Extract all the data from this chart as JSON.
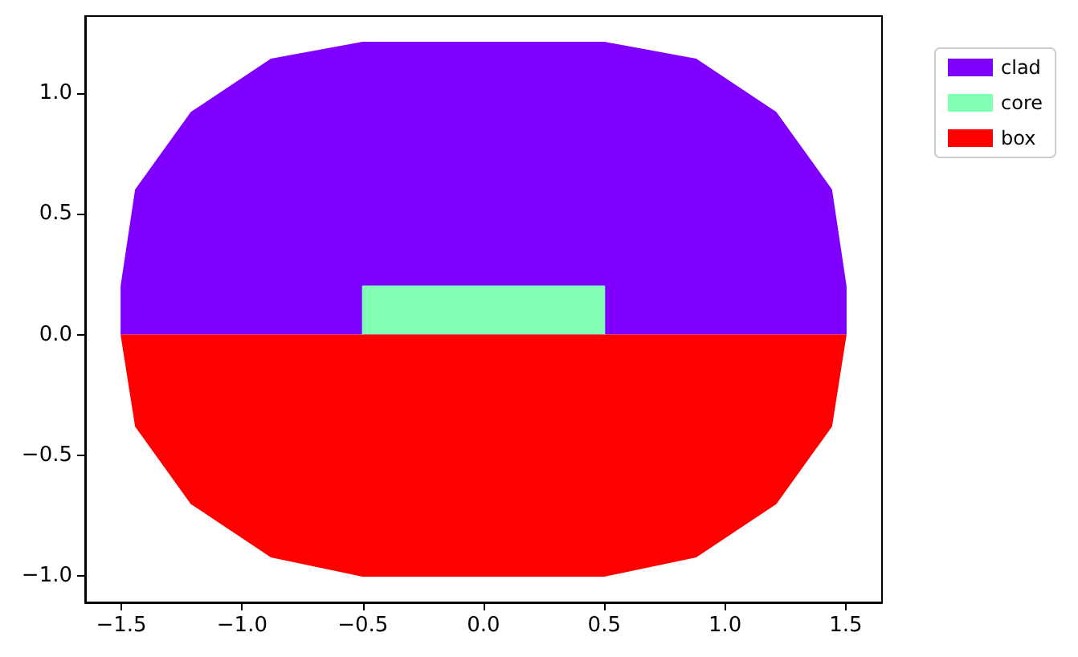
{
  "chart_data": {
    "type": "area",
    "xlim": [
      -1.65,
      1.65
    ],
    "ylim": [
      -1.11,
      1.32
    ],
    "xticks": [
      {
        "value": -1.5,
        "label": "−1.5"
      },
      {
        "value": -1,
        "label": "−1.0"
      },
      {
        "value": -0.5,
        "label": "−0.5"
      },
      {
        "value": 0,
        "label": "0.0"
      },
      {
        "value": 0.5,
        "label": "0.5"
      },
      {
        "value": 1,
        "label": "1.0"
      },
      {
        "value": 1.5,
        "label": "1.5"
      }
    ],
    "yticks": [
      {
        "value": -1,
        "label": "−1.0"
      },
      {
        "value": -0.5,
        "label": "−0.5"
      },
      {
        "value": 0,
        "label": "0.0"
      },
      {
        "value": 0.5,
        "label": "0.5"
      },
      {
        "value": 1,
        "label": "1.0"
      }
    ],
    "grid": false,
    "legend": "top right",
    "marker": "none",
    "series": [
      {
        "name": "clad",
        "color": "#8000ff",
        "x": [
          -1.5,
          -1.5,
          -1.44,
          -1.21,
          -0.88,
          -0.5,
          0.5,
          0.88,
          1.21,
          1.44,
          1.5,
          1.5
        ],
        "values": [
          0,
          0.2,
          0.6,
          0.92,
          1.14,
          1.21,
          1.21,
          1.14,
          0.92,
          0.6,
          0.2,
          0
        ]
      },
      {
        "name": "core",
        "color": "#80ffb4",
        "x": [
          -0.5,
          -0.5,
          0.5,
          0.5
        ],
        "values": [
          0,
          0.2,
          0.2,
          0
        ]
      },
      {
        "name": "box",
        "color": "#ff0000",
        "x": [
          -1.5,
          -1.44,
          -1.21,
          -0.88,
          -0.5,
          0.5,
          0.88,
          1.21,
          1.44,
          1.5
        ],
        "values": [
          0,
          -0.38,
          -0.7,
          -0.92,
          -1,
          -1,
          -0.92,
          -0.7,
          -0.38,
          0
        ]
      }
    ]
  }
}
